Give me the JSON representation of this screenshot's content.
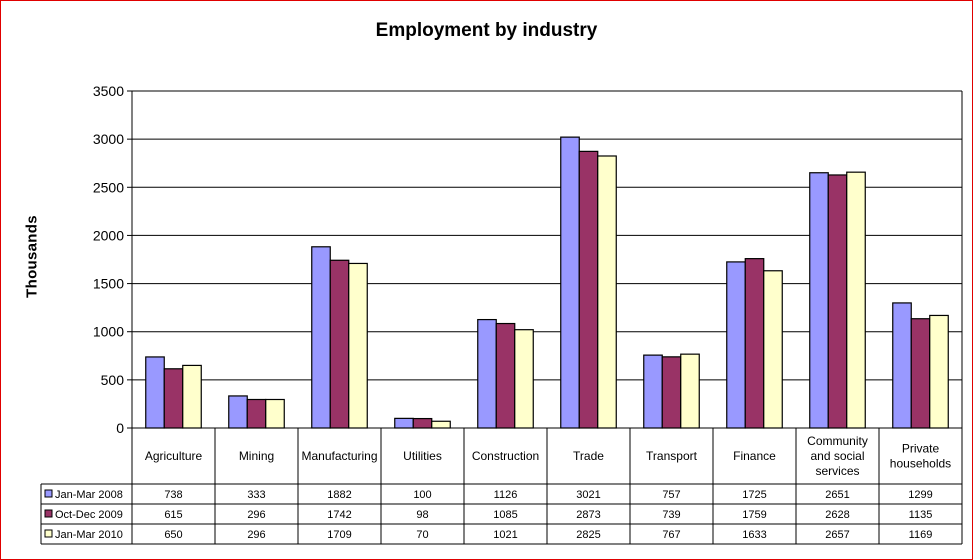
{
  "chart_data": {
    "type": "bar",
    "title": "Employment by industry",
    "ylabel": "Thousands",
    "xlabel": "",
    "ylim": [
      0,
      3500
    ],
    "yticks": [
      0,
      500,
      1000,
      1500,
      2000,
      2500,
      3000,
      3500
    ],
    "grid": true,
    "legend": "data-table",
    "categories": [
      [
        "Agriculture"
      ],
      [
        "Mining"
      ],
      [
        "Manufacturing"
      ],
      [
        "Utilities"
      ],
      [
        "Construction"
      ],
      [
        "Trade"
      ],
      [
        "Transport"
      ],
      [
        "Finance"
      ],
      [
        "Community",
        "and social",
        "services"
      ],
      [
        "Private",
        "households"
      ]
    ],
    "series": [
      {
        "name": "Jan-Mar 2008",
        "color": "#9999ff",
        "values": [
          738,
          333,
          1882,
          100,
          1126,
          3021,
          757,
          1725,
          2651,
          1299
        ]
      },
      {
        "name": "Oct-Dec 2009",
        "color": "#993366",
        "values": [
          615,
          296,
          1742,
          98,
          1085,
          2873,
          739,
          1759,
          2628,
          1135
        ]
      },
      {
        "name": "Jan-Mar 2010",
        "color": "#ffffcc",
        "values": [
          650,
          296,
          1709,
          70,
          1021,
          2825,
          767,
          1633,
          2657,
          1169
        ]
      }
    ]
  }
}
